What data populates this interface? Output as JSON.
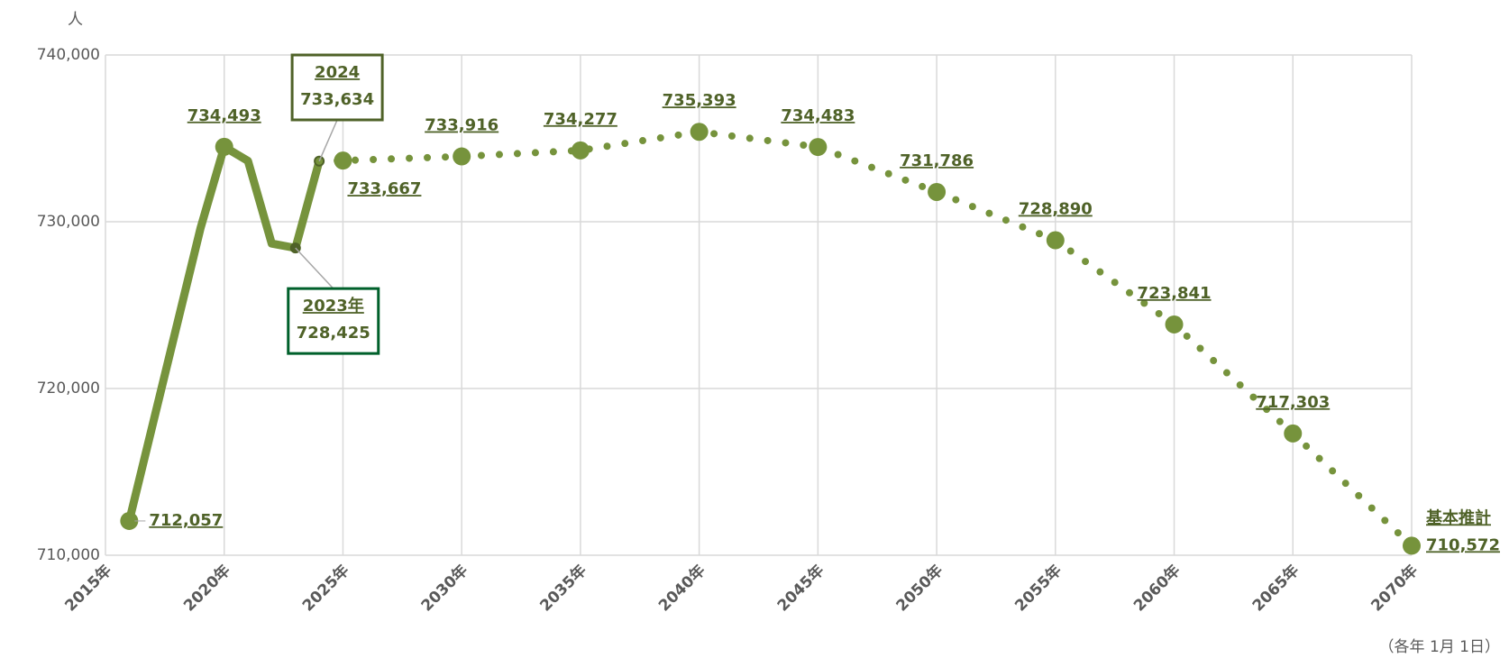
{
  "chart_data": {
    "type": "line",
    "unit_label": "人",
    "footnote": "（各年 1月 1日）",
    "xlim": [
      2015,
      2070
    ],
    "xticks": [
      {
        "value": 2015,
        "label": "2015年"
      },
      {
        "value": 2020,
        "label": "2020年"
      },
      {
        "value": 2025,
        "label": "2025年"
      },
      {
        "value": 2030,
        "label": "2030年"
      },
      {
        "value": 2035,
        "label": "2035年"
      },
      {
        "value": 2040,
        "label": "2040年"
      },
      {
        "value": 2045,
        "label": "2045年"
      },
      {
        "value": 2050,
        "label": "2050年"
      },
      {
        "value": 2055,
        "label": "2055年"
      },
      {
        "value": 2060,
        "label": "2060年"
      },
      {
        "value": 2065,
        "label": "2065年"
      },
      {
        "value": 2070,
        "label": "2070年"
      }
    ],
    "ylim": [
      710000,
      740000
    ],
    "yticks": [
      {
        "value": 710000,
        "label": "710,000"
      },
      {
        "value": 720000,
        "label": "720,000"
      },
      {
        "value": 730000,
        "label": "730,000"
      },
      {
        "value": 740000,
        "label": "740,000"
      }
    ],
    "grid": true,
    "series": [
      {
        "color": "#76933c",
        "style": "solid",
        "x": [
          2016,
          2019,
          2020,
          2021,
          2022,
          2023,
          2024
        ],
        "values": [
          712057,
          729600,
          734493,
          733650,
          728690,
          728425,
          733634
        ],
        "value_labels": [
          "712,057",
          null,
          "734,493",
          null,
          null,
          "728,425",
          "733,634"
        ],
        "point_titles": [
          null,
          null,
          null,
          null,
          null,
          "2023年",
          "2024"
        ]
      },
      {
        "name": "基本推計",
        "color": "#76933c",
        "style": "dotted",
        "x": [
          2024,
          2025,
          2030,
          2035,
          2040,
          2045,
          2050,
          2055,
          2060,
          2065,
          2070
        ],
        "values": [
          733634,
          733667,
          733916,
          734277,
          735393,
          734483,
          731786,
          728890,
          723841,
          717303,
          710572
        ],
        "value_labels": [
          null,
          "733,667",
          "733,916",
          "734,277",
          "735,393",
          "734,483",
          "731,786",
          "728,890",
          "723,841",
          "717,303",
          "710,572"
        ]
      }
    ]
  }
}
